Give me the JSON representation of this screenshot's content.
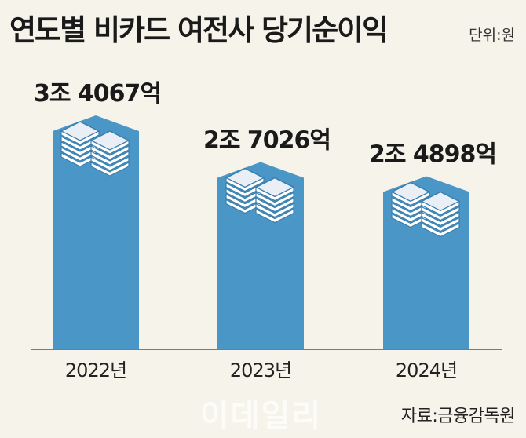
{
  "title": "연도별 비카드 여전사 당기순이익",
  "unit": "단위:원",
  "source": "자료:금융감독원",
  "watermark": "이데일리",
  "colors": {
    "bar": "#4a96c6",
    "bar_dark": "#3a7fae",
    "stack_white": "#ffffff",
    "stack_top": "#e9eff5",
    "background": "#f6f3ea"
  },
  "chart_data": {
    "type": "bar",
    "categories": [
      "2022년",
      "2023년",
      "2024년"
    ],
    "values": [
      34067,
      27026,
      24898
    ],
    "labels": [
      "3조 4067억",
      "2조 7026억",
      "2조 4898억"
    ],
    "value_unit": "억원",
    "title": "연도별 비카드 여전사 당기순이익",
    "xlabel": "",
    "ylabel": "",
    "ylim": [
      0,
      34067
    ],
    "grid": false
  }
}
